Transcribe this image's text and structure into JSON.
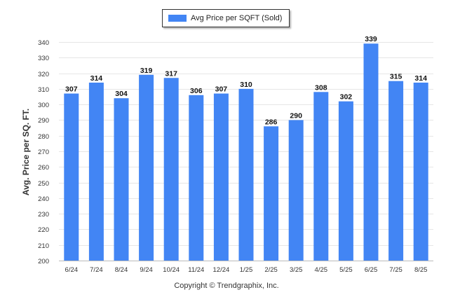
{
  "legend": {
    "label": "Avg Price per SQFT (Sold)",
    "color": "#4285f4"
  },
  "footer": {
    "copyright": "Copyright © Trendgraphix, Inc."
  },
  "chart_data": {
    "type": "bar",
    "title": "",
    "ylabel": "Avg. Price per SQ. FT.",
    "xlabel": "",
    "categories": [
      "6/24",
      "7/24",
      "8/24",
      "9/24",
      "10/24",
      "11/24",
      "12/24",
      "1/25",
      "2/25",
      "3/25",
      "4/25",
      "5/25",
      "6/25",
      "7/25",
      "8/25"
    ],
    "series": [
      {
        "name": "Avg Price per SQFT (Sold)",
        "values": [
          307,
          314,
          304,
          319,
          317,
          306,
          307,
          310,
          286,
          290,
          308,
          302,
          339,
          315,
          314
        ]
      }
    ],
    "ylim": [
      200,
      340
    ],
    "yticks": [
      200,
      210,
      220,
      230,
      240,
      250,
      260,
      270,
      280,
      290,
      300,
      310,
      320,
      330,
      340
    ],
    "grid": true,
    "legend_position": "top-center",
    "bar_color": "#4285f4",
    "data_labels": true
  }
}
